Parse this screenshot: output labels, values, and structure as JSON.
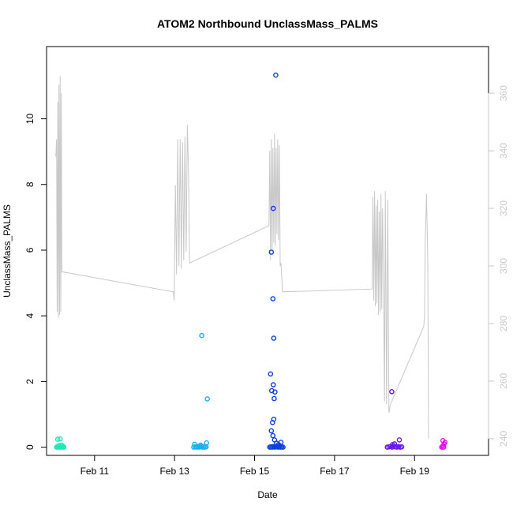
{
  "chart_data": {
    "type": "scatter",
    "title": "ATOM2 Northbound UnclassMass_PALMS",
    "xlabel": "Date",
    "ylabel": "UnclassMass_PALMS",
    "xlim": [
      9.8,
      20.85
    ],
    "ylim": [
      -0.25,
      12.2
    ],
    "y2lim": [
      234.2,
      376.2
    ],
    "x_ticks": [
      {
        "value": 11,
        "label": "Feb 11"
      },
      {
        "value": 13,
        "label": "Feb 13"
      },
      {
        "value": 15,
        "label": "Feb 15"
      },
      {
        "value": 17,
        "label": "Feb 17"
      },
      {
        "value": 19,
        "label": "Feb 19"
      }
    ],
    "y_ticks": [
      0,
      2,
      4,
      6,
      8,
      10
    ],
    "y2_ticks": [
      240,
      260,
      280,
      300,
      320,
      340,
      360
    ],
    "series": [
      {
        "color": "#1de9b6",
        "x": [
          10.05,
          10.07,
          10.09,
          10.11,
          10.13,
          10.15,
          10.17,
          10.19,
          10.21,
          10.23,
          10.08,
          10.14,
          10.18,
          10.12
        ],
        "y": [
          0.0,
          0.02,
          0.01,
          0.0,
          0.03,
          0.0,
          0.01,
          0.0,
          0.02,
          0.0,
          0.24,
          0.25,
          0.06,
          0.05
        ]
      },
      {
        "color": "#1ab2ea",
        "x": [
          13.48,
          13.52,
          13.55,
          13.58,
          13.61,
          13.64,
          13.67,
          13.7,
          13.73,
          13.76,
          13.79,
          13.5,
          13.65,
          13.8,
          13.68,
          13.82
        ],
        "y": [
          0.0,
          0.01,
          0.0,
          0.02,
          0.0,
          0.01,
          0.03,
          0.0,
          0.02,
          0.0,
          0.01,
          0.09,
          0.06,
          0.13,
          3.4,
          1.47
        ]
      },
      {
        "color": "#0d3fdc",
        "x": [
          15.38,
          15.41,
          15.44,
          15.47,
          15.5,
          15.53,
          15.56,
          15.59,
          15.62,
          15.65,
          15.68,
          15.71,
          15.42,
          15.46,
          15.5,
          15.55,
          15.6,
          15.66,
          15.45,
          15.48,
          15.43,
          15.47,
          15.51,
          15.4,
          15.49,
          15.48,
          15.46,
          15.42,
          15.47,
          15.53
        ],
        "y": [
          0.0,
          0.01,
          0.0,
          0.02,
          0.0,
          0.01,
          0.03,
          0.0,
          0.02,
          0.0,
          0.01,
          0.0,
          0.5,
          0.35,
          0.22,
          0.12,
          0.08,
          0.15,
          0.75,
          0.85,
          1.72,
          1.9,
          1.68,
          2.23,
          1.48,
          3.32,
          4.52,
          5.94,
          7.27,
          11.33
        ]
      },
      {
        "color": "#6a1ae8",
        "x": [
          18.32,
          18.36,
          18.4,
          18.44,
          18.48,
          18.52,
          18.56,
          18.6,
          18.64,
          18.68,
          18.45,
          18.62,
          18.5,
          18.43
        ],
        "y": [
          0.0,
          0.01,
          0.02,
          0.0,
          0.03,
          0.01,
          0.0,
          0.02,
          0.0,
          0.01,
          0.08,
          0.22,
          0.1,
          1.69
        ]
      },
      {
        "color": "#e019e8",
        "x": [
          19.68,
          19.7,
          19.72,
          19.74,
          19.76,
          19.71,
          19.73
        ],
        "y": [
          0.0,
          0.02,
          0.05,
          0.1,
          0.15,
          0.2,
          0.0
        ]
      }
    ],
    "line_series": {
      "color": "#c8c8c8",
      "axis": "right",
      "x": [
        10.03,
        10.05,
        10.065,
        10.08,
        10.095,
        10.11,
        10.125,
        10.14,
        10.155,
        10.17,
        10.18,
        12.97,
        12.99,
        13.02,
        13.05,
        13.08,
        13.11,
        13.14,
        13.17,
        13.2,
        13.23,
        13.26,
        13.29,
        13.32,
        13.35,
        13.375,
        15.36,
        15.38,
        15.4,
        15.42,
        15.44,
        15.46,
        15.48,
        15.5,
        15.52,
        15.54,
        15.56,
        15.58,
        15.6,
        15.62,
        15.64,
        15.66,
        15.7,
        17.94,
        17.96,
        17.98,
        18.0,
        18.02,
        18.04,
        18.06,
        18.08,
        18.1,
        18.12,
        18.14,
        18.16,
        18.18,
        18.2,
        18.22,
        18.25,
        18.27,
        18.3,
        18.33,
        18.36,
        18.4,
        19.23,
        19.25,
        19.27,
        19.3,
        19.33,
        19.35
      ],
      "y": [
        338,
        344,
        284,
        357,
        282,
        363,
        283,
        366,
        284,
        360,
        298,
        291,
        288,
        328,
        297,
        344,
        300,
        344,
        299,
        343,
        302,
        345,
        305,
        349,
        332,
        301,
        314,
        340,
        302,
        344,
        305,
        341,
        308,
        346,
        307,
        341,
        311,
        344,
        309,
        342,
        300,
        301,
        291,
        292,
        324,
        288,
        326,
        286,
        321,
        287,
        323,
        283,
        319,
        284,
        325,
        285,
        320,
        300,
        253,
        326,
        252,
        323,
        249,
        252,
        279,
        283,
        310,
        325,
        302,
        240
      ]
    }
  }
}
